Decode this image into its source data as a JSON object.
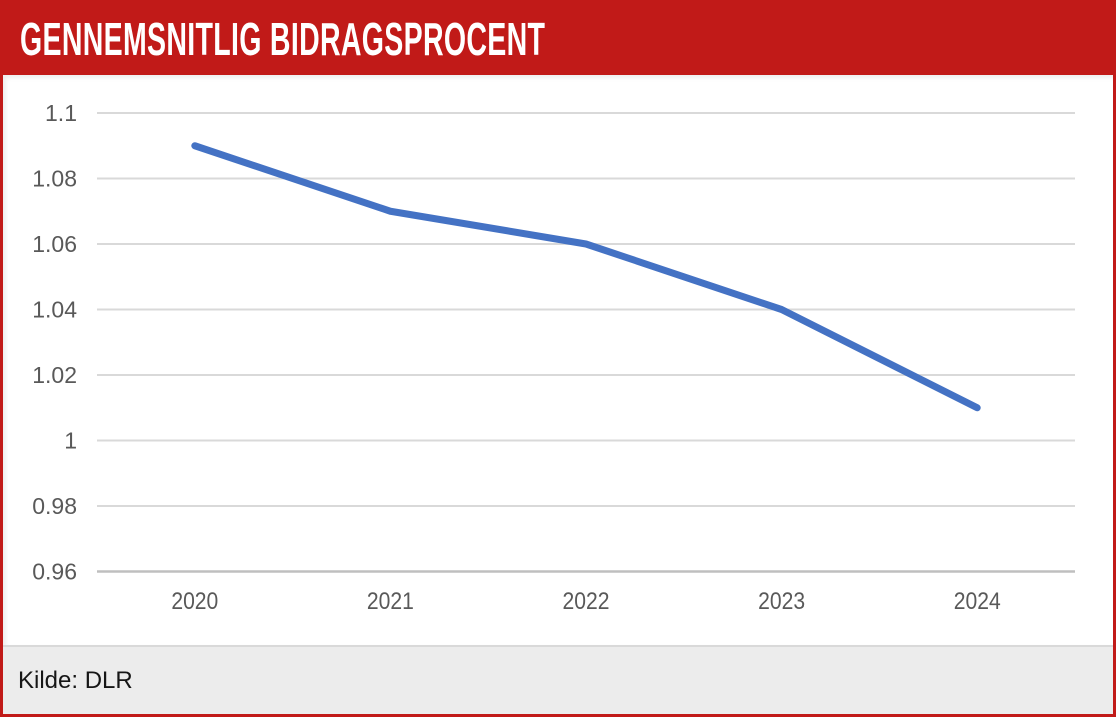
{
  "header": {
    "title": "Gennemsnitlig bidragsprocent"
  },
  "footer": {
    "source_label": "Kilde: DLR"
  },
  "chart_data": {
    "type": "line",
    "title": "Gennemsnitlig bidragsprocent",
    "categories": [
      "2020",
      "2021",
      "2022",
      "2023",
      "2024"
    ],
    "values": [
      1.09,
      1.07,
      1.06,
      1.04,
      1.01
    ],
    "xlabel": "",
    "ylabel": "",
    "ylim": [
      0.96,
      1.1
    ],
    "ytick_labels": [
      "1.1",
      "1.08",
      "1.06",
      "1.04",
      "1.02",
      "1",
      "0.98",
      "0.96"
    ],
    "grid": true,
    "legend": "none",
    "line_color": "#4472C4"
  },
  "colors": {
    "accent_red": "#C11A18",
    "line_blue": "#4472C4",
    "gridline": "#D9D9D9",
    "axis_line": "#BFBFBF",
    "tick_text": "#595959",
    "footer_bg": "#ECECEC"
  }
}
